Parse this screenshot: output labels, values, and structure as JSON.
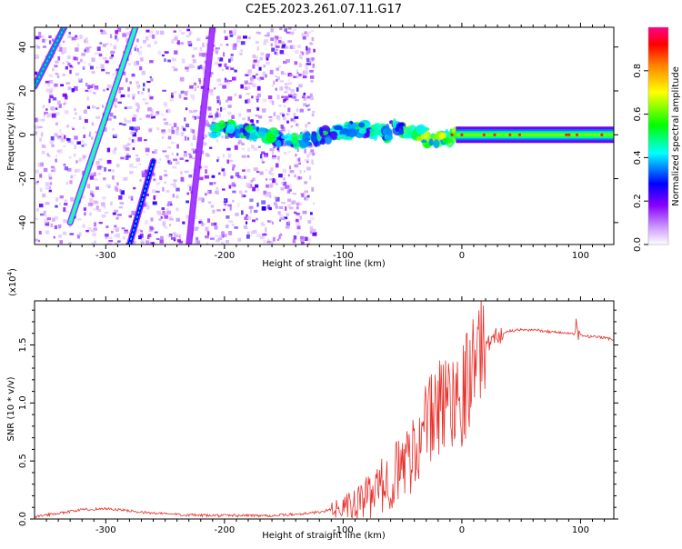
{
  "title": "C2E5.2023.261.07.11.G17",
  "chart_data": [
    {
      "type": "heatmap",
      "xlabel": "Height of straight line (km)",
      "ylabel": "Frequency (Hz)",
      "xlim": [
        -360,
        128
      ],
      "ylim": [
        -50,
        49
      ],
      "xticks": [
        -300,
        -200,
        -100,
        0,
        100
      ],
      "yticks": [
        -40,
        -20,
        0,
        20,
        40
      ],
      "colorbar": {
        "label": "Normalized spectral amplitude",
        "range": [
          0,
          1
        ],
        "ticks": [
          0.0,
          0.2,
          0.4,
          0.6,
          0.8
        ],
        "colors": [
          "#ffffff",
          "#cc99ff",
          "#8800ff",
          "#0000ff",
          "#00ffff",
          "#00ff00",
          "#ffff00",
          "#ff8800",
          "#ff0000",
          "#ff00aa"
        ]
      },
      "features": {
        "carrier_line": {
          "x_range": [
            -180,
            128
          ],
          "frequency_hz": 0,
          "amplitude": 0.9
        },
        "diagonal_traces": [
          {
            "x": [
              -360,
              -335
            ],
            "frequency_hz": [
              22,
              49
            ],
            "amplitude": 0.5
          },
          {
            "x": [
              -330,
              -275
            ],
            "frequency_hz": [
              -40,
              49
            ],
            "amplitude": 0.6
          },
          {
            "x": [
              -280,
              -260
            ],
            "frequency_hz": [
              -50,
              -12
            ],
            "amplitude": 0.4
          },
          {
            "x": [
              -230,
              -210
            ],
            "frequency_hz": [
              -50,
              49
            ],
            "amplitude": 0.2
          }
        ],
        "noise_region": {
          "x_range": [
            -360,
            -125
          ],
          "frequency_hz": [
            -50,
            49
          ]
        }
      }
    },
    {
      "type": "line",
      "xlabel": "Height of straight line (km)",
      "ylabel": "SNR (10 * v/v)",
      "multiplier": "(x10",
      "multiplier_exp": "4",
      "multiplier_close": ")",
      "xlim": [
        -360,
        128
      ],
      "ylim": [
        0,
        1.88
      ],
      "xticks": [
        -300,
        -200,
        -100,
        0,
        100
      ],
      "yticks": [
        "0.0",
        "0.5",
        "1.0",
        "1.5"
      ],
      "series": [
        {
          "color": "#e8302a",
          "x": [
            -360,
            -340,
            -320,
            -300,
            -280,
            -260,
            -240,
            -220,
            -200,
            -180,
            -160,
            -140,
            -120,
            -100,
            -90,
            -80,
            -70,
            -60,
            -50,
            -40,
            -30,
            -20,
            -10,
            0,
            5,
            10,
            15,
            20,
            25,
            30,
            40,
            50,
            60,
            70,
            80,
            90,
            100,
            110,
            120,
            128
          ],
          "y": [
            0.02,
            0.05,
            0.08,
            0.09,
            0.07,
            0.05,
            0.04,
            0.03,
            0.03,
            0.03,
            0.03,
            0.04,
            0.06,
            0.1,
            0.12,
            0.18,
            0.26,
            0.35,
            0.45,
            0.6,
            0.8,
            0.95,
            1.05,
            1.1,
            1.2,
            1.4,
            1.45,
            1.5,
            1.55,
            1.58,
            1.62,
            1.63,
            1.63,
            1.62,
            1.61,
            1.6,
            1.58,
            1.57,
            1.56,
            1.55
          ]
        }
      ]
    }
  ]
}
